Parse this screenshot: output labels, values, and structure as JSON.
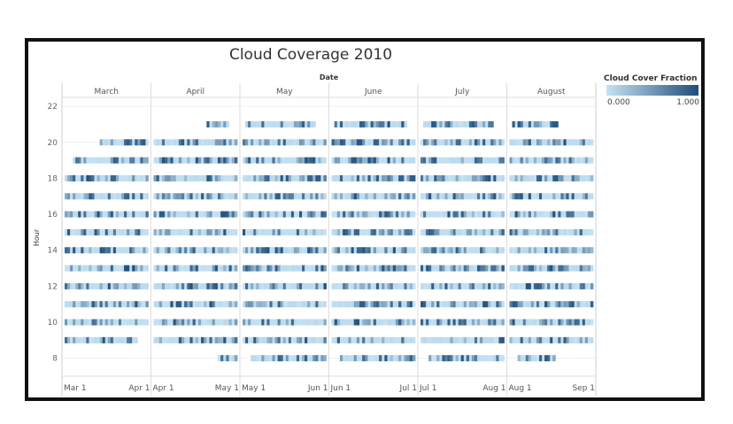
{
  "chart_data": {
    "type": "heatmap",
    "title": "Cloud Coverage 2010",
    "column_header": "Date",
    "ylabel": "Hour",
    "y_ticks": [
      8,
      10,
      12,
      14,
      16,
      18,
      20,
      22
    ],
    "ylim": [
      7,
      22.5
    ],
    "hours": [
      8,
      9,
      10,
      11,
      12,
      13,
      14,
      15,
      16,
      17,
      18,
      19,
      20,
      21
    ],
    "months": [
      {
        "name": "March",
        "days": 31,
        "start_label": "Mar 1",
        "end_label": "Apr 1",
        "first_hour": 9,
        "last_hour": 20,
        "seed": 3
      },
      {
        "name": "April",
        "days": 30,
        "start_label": "Apr 1",
        "end_label": "May 1",
        "first_hour": 8,
        "last_hour": 21,
        "seed": 7
      },
      {
        "name": "May",
        "days": 31,
        "start_label": "May 1",
        "end_label": "Jun 1",
        "first_hour": 8,
        "last_hour": 21,
        "seed": 11
      },
      {
        "name": "June",
        "days": 30,
        "start_label": "Jun 1",
        "end_label": "Jul 1",
        "first_hour": 8,
        "last_hour": 21,
        "seed": 13
      },
      {
        "name": "July",
        "days": 31,
        "start_label": "Jul 1",
        "end_label": "Aug 1",
        "first_hour": 8,
        "last_hour": 21,
        "seed": 17
      },
      {
        "name": "August",
        "days": 31,
        "start_label": "Aug 1",
        "end_label": "Sep 1",
        "first_hour": 8,
        "last_hour": 21,
        "seed": 19
      }
    ],
    "legend": {
      "title": "Cloud Cover Fraction",
      "min": "0.000",
      "max": "1.000",
      "placement": "top-right"
    },
    "color_low": "#c6e2f4",
    "color_high": "#1f4e79"
  }
}
